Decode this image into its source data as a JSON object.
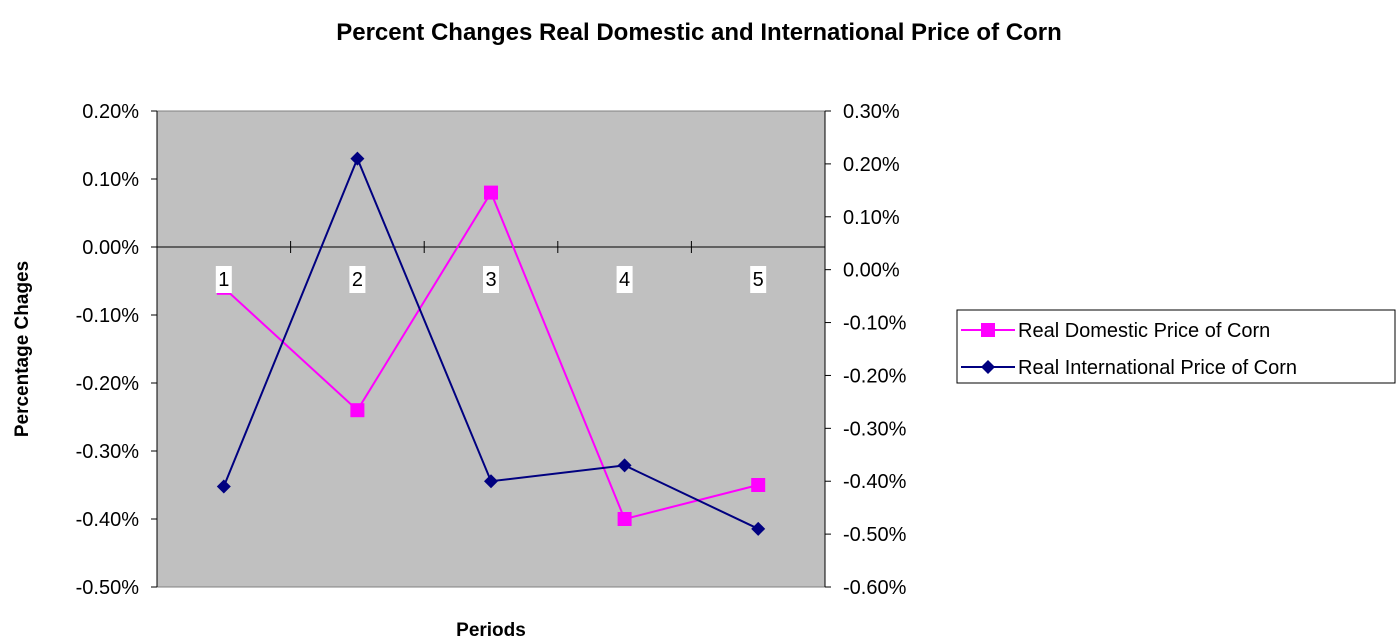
{
  "chart_data": {
    "type": "line",
    "title": "Percent Changes Real Domestic and International Price of Corn",
    "xlabel": "Periods",
    "ylabel": "Percentage Chages",
    "categories": [
      "1",
      "2",
      "3",
      "4",
      "5"
    ],
    "y_left": {
      "lim": [
        -0.5,
        0.2
      ],
      "ticks": [
        0.2,
        0.1,
        0.0,
        -0.1,
        -0.2,
        -0.3,
        -0.4,
        -0.5
      ],
      "tick_labels": [
        "0.20%",
        "0.10%",
        "0.00%",
        "-0.10%",
        "-0.20%",
        "-0.30%",
        "-0.40%",
        "-0.50%"
      ]
    },
    "y_right": {
      "lim": [
        -0.6,
        0.3
      ],
      "ticks": [
        0.3,
        0.2,
        0.1,
        0.0,
        -0.1,
        -0.2,
        -0.3,
        -0.4,
        -0.5,
        -0.6
      ],
      "tick_labels": [
        "0.30%",
        "0.20%",
        "0.10%",
        "0.00%",
        "-0.10%",
        "-0.20%",
        "-0.30%",
        "-0.40%",
        "-0.50%",
        "-0.60%"
      ]
    },
    "series": [
      {
        "name": "Real Domestic Price of Corn",
        "axis": "left",
        "color": "#ff00ff",
        "marker": "square",
        "values": [
          -0.06,
          -0.24,
          0.08,
          -0.4,
          -0.35
        ]
      },
      {
        "name": "Real International Price of Corn",
        "axis": "right",
        "color": "#000080",
        "marker": "diamond",
        "values": [
          -0.41,
          0.21,
          -0.4,
          -0.37,
          -0.49
        ]
      }
    ],
    "plot_background": "#c0c0c0",
    "grid": false,
    "legend_position": "right"
  }
}
